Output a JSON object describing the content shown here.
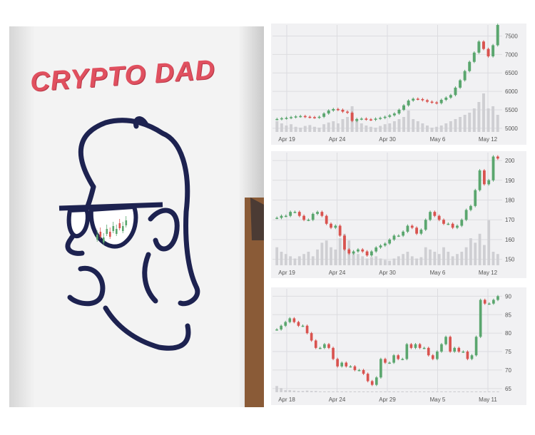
{
  "shirt": {
    "print_text": "CRYPTO DAD",
    "colors": {
      "text": "#e0505f",
      "outline": "#1d2250",
      "candle_up": "#5aa66e",
      "candle_down": "#d9534f"
    }
  },
  "charts": [
    {
      "y_ticks": [
        "7500",
        "7000",
        "6500",
        "6000",
        "5500",
        "5000"
      ],
      "ylim": [
        4900,
        7800
      ],
      "x_labels": [
        "Apr 19",
        "Apr 24",
        "Apr 30",
        "May 6",
        "May 12"
      ]
    },
    {
      "y_ticks": [
        "200",
        "190",
        "180",
        "170",
        "160",
        "150"
      ],
      "ylim": [
        147,
        204
      ],
      "x_labels": [
        "Apr 19",
        "Apr 24",
        "Apr 30",
        "May 6",
        "May 12"
      ]
    },
    {
      "y_ticks": [
        "90",
        "85",
        "80",
        "75",
        "70",
        "65"
      ],
      "ylim": [
        64,
        92
      ],
      "x_labels": [
        "Apr 18",
        "Apr 24",
        "Apr 29",
        "May 5",
        "May 11"
      ]
    }
  ],
  "chart_data": [
    {
      "type": "candlestick",
      "ylim": [
        4900,
        7800
      ],
      "closes": [
        5250,
        5270,
        5280,
        5300,
        5320,
        5330,
        5310,
        5300,
        5290,
        5310,
        5400,
        5480,
        5520,
        5500,
        5450,
        5420,
        5200,
        5250,
        5260,
        5240,
        5230,
        5260,
        5280,
        5310,
        5350,
        5400,
        5500,
        5620,
        5750,
        5800,
        5790,
        5760,
        5720,
        5700,
        5680,
        5770,
        5830,
        5900,
        6100,
        6300,
        6550,
        6800,
        7050,
        7350,
        7150,
        6950,
        7250,
        7800
      ],
      "volumes": [
        0.25,
        0.2,
        0.15,
        0.18,
        0.12,
        0.1,
        0.14,
        0.16,
        0.12,
        0.1,
        0.18,
        0.22,
        0.25,
        0.2,
        0.3,
        0.35,
        0.6,
        0.3,
        0.2,
        0.15,
        0.12,
        0.1,
        0.14,
        0.18,
        0.2,
        0.25,
        0.3,
        0.35,
        0.5,
        0.3,
        0.25,
        0.2,
        0.15,
        0.1,
        0.12,
        0.15,
        0.2,
        0.25,
        0.3,
        0.35,
        0.4,
        0.45,
        0.55,
        0.7,
        0.9,
        0.55,
        0.6,
        0.4
      ]
    },
    {
      "type": "candlestick",
      "ylim": [
        147,
        204
      ],
      "closes": [
        171,
        172,
        172,
        174,
        174,
        172,
        170,
        170,
        173,
        174,
        172,
        168,
        166,
        167,
        162,
        155,
        153,
        154,
        155,
        154,
        152,
        154,
        156,
        157,
        158,
        160,
        162,
        162,
        164,
        167,
        166,
        163,
        165,
        170,
        174,
        172,
        170,
        168,
        168,
        166,
        167,
        170,
        175,
        177,
        185,
        195,
        188,
        190,
        202,
        201
      ],
      "volumes": [
        0.4,
        0.3,
        0.25,
        0.2,
        0.15,
        0.2,
        0.25,
        0.3,
        0.2,
        0.35,
        0.5,
        0.55,
        0.4,
        0.35,
        0.6,
        0.7,
        0.55,
        0.3,
        0.25,
        0.2,
        0.15,
        0.18,
        0.2,
        0.15,
        0.12,
        0.1,
        0.15,
        0.2,
        0.25,
        0.3,
        0.2,
        0.15,
        0.18,
        0.4,
        0.35,
        0.3,
        0.25,
        0.4,
        0.3,
        0.2,
        0.25,
        0.3,
        0.4,
        0.6,
        0.5,
        0.7,
        0.45,
        1.0,
        0.3,
        0.25
      ]
    },
    {
      "type": "candlestick",
      "ylim": [
        64,
        92
      ],
      "closes": [
        81,
        82,
        83,
        84,
        83,
        82,
        82,
        80,
        78,
        76,
        76,
        77,
        76,
        73,
        71,
        72,
        71,
        71,
        70,
        70,
        69,
        67,
        66,
        68,
        73,
        72,
        72,
        74,
        73,
        73,
        77,
        76,
        77,
        76,
        76,
        74,
        73,
        75,
        77,
        79,
        75,
        76,
        75,
        75,
        73,
        74,
        79,
        89,
        88,
        88,
        89,
        90
      ],
      "volumes": [
        0.15,
        0.1,
        0.05,
        0.05,
        0.04,
        0.03,
        0.03,
        0.04,
        0.03,
        0.03,
        0.02,
        0.02,
        0.02,
        0.02,
        0.02,
        0.02,
        0.02,
        0.02,
        0.02,
        0.02,
        0.02,
        0.02,
        0.02,
        0.02,
        0.02,
        0.02,
        0.02,
        0.02,
        0.02,
        0.02,
        0.02,
        0.02,
        0.02,
        0.02,
        0.02,
        0.02,
        0.02,
        0.02,
        0.02,
        0.02,
        0.02,
        0.02,
        0.02,
        0.02,
        0.02,
        0.02,
        0.02,
        0.02,
        0.02,
        0.02,
        0.02,
        0.02
      ]
    }
  ]
}
